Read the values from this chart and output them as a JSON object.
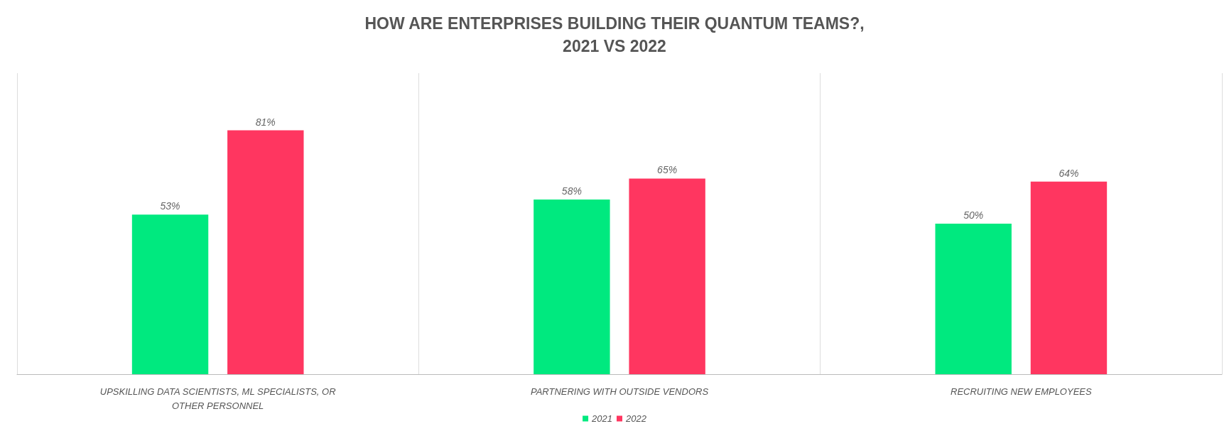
{
  "chart_data": {
    "type": "bar",
    "title": "HOW ARE ENTERPRISES BUILDING THEIR QUANTUM TEAMS?,\n2021 VS 2022",
    "categories": [
      "UPSKILLING DATA SCIENTISTS, ML SPECIALISTS, OR\nOTHER PERSONNEL",
      "PARTNERING WITH OUTSIDE VENDORS",
      "RECRUITING NEW EMPLOYEES"
    ],
    "series": [
      {
        "name": "2021",
        "color": "#00e97f",
        "values": [
          53,
          58,
          50
        ],
        "value_labels": [
          "53%",
          "58%",
          "50%"
        ]
      },
      {
        "name": "2022",
        "color": "#ff3660",
        "values": [
          81,
          65,
          64
        ],
        "value_labels": [
          "81%",
          "65%",
          "64%"
        ]
      }
    ],
    "tick_labels": "x",
    "grid": "x",
    "legend": "bottom"
  }
}
